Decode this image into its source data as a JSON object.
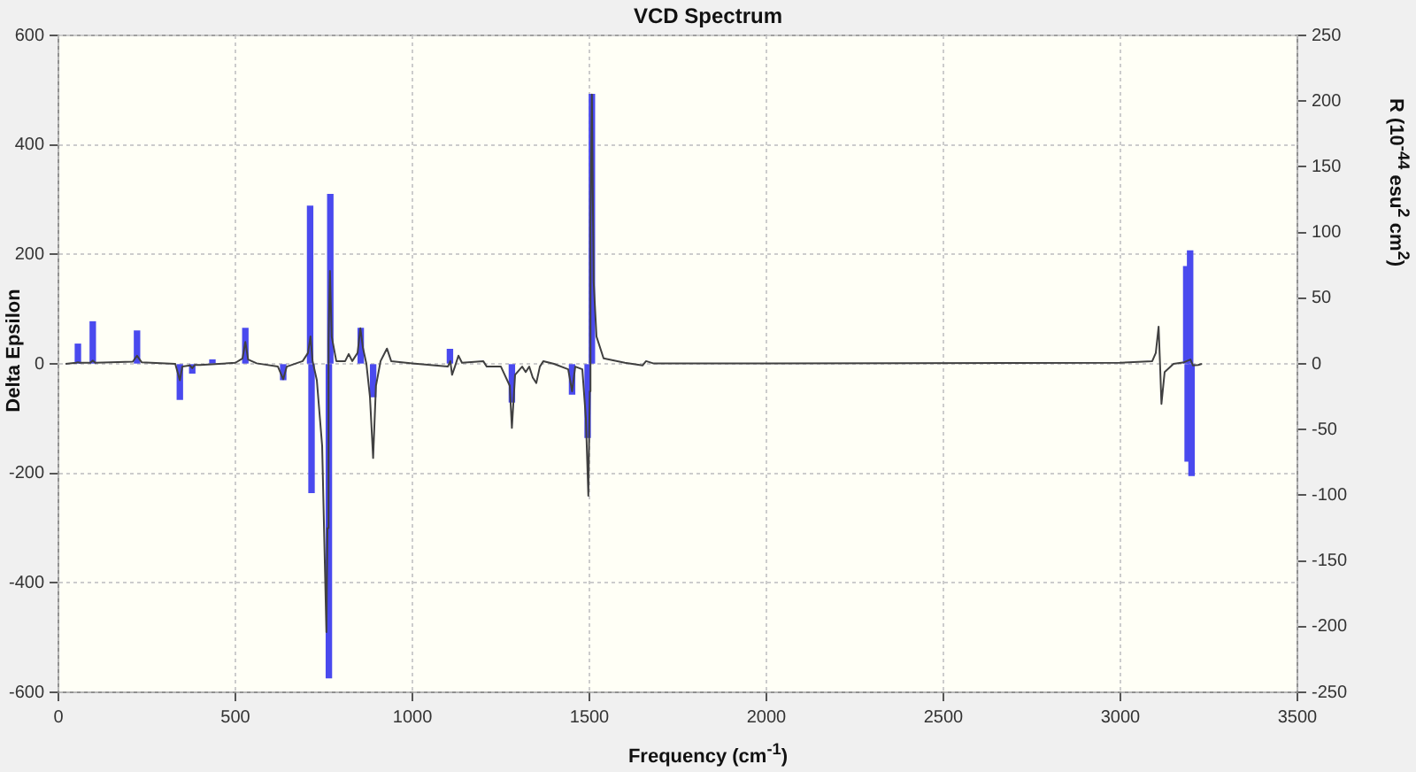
{
  "chart_data": {
    "type": "line",
    "title": "VCD Spectrum",
    "xlabel": "Frequency (cm$^{-1}$)",
    "ylabel": "Delta Epsilon",
    "y2label": "R (10$^{-44}$ esu$^{2}$ cm$^{2}$)",
    "xlim": [
      0,
      3500
    ],
    "xticks": [
      0,
      500,
      1000,
      1500,
      2000,
      2500,
      3000,
      3500
    ],
    "ylim": [
      -600,
      600
    ],
    "yticks": [
      -600,
      -400,
      -200,
      0,
      200,
      400,
      600
    ],
    "y2lim": [
      -250,
      250
    ],
    "y2ticks": [
      -250,
      -200,
      -150,
      -100,
      -50,
      0,
      50,
      100,
      150,
      200,
      250
    ],
    "grid": true,
    "legend": false,
    "marker": "none",
    "line_style": "solid",
    "series": [
      {
        "color": "#404040",
        "x": [
          20,
          50,
          55,
          60,
          90,
          97,
          104,
          210,
          222,
          235,
          330,
          343,
          350,
          372,
          378,
          385,
          400,
          500,
          520,
          528,
          536,
          560,
          620,
          635,
          645,
          690,
          705,
          712,
          718,
          730,
          745,
          757,
          760,
          763,
          767,
          772,
          785,
          810,
          820,
          830,
          845,
          853,
          860,
          870,
          880,
          889,
          897,
          910,
          928,
          940,
          1000,
          1100,
          1107,
          1112,
          1120,
          1130,
          1140,
          1200,
          1210,
          1250,
          1275,
          1281,
          1290,
          1310,
          1320,
          1330,
          1340,
          1350,
          1360,
          1370,
          1400,
          1440,
          1451,
          1460,
          1480,
          1490,
          1497,
          1501,
          1503,
          1507,
          1512,
          1520,
          1540,
          1600,
          1650,
          1660,
          1680,
          2000,
          3000,
          3090,
          3100,
          3108,
          3112,
          3116,
          3125,
          3150,
          3180,
          3198,
          3205,
          3220,
          3230
        ],
        "values": [
          0,
          2,
          3,
          2,
          2,
          6,
          2,
          4,
          15,
          3,
          0,
          -30,
          -5,
          -3,
          -8,
          -2,
          -2,
          2,
          10,
          40,
          8,
          1,
          -5,
          -28,
          -5,
          5,
          20,
          50,
          5,
          -30,
          -150,
          -490,
          -300,
          40,
          170,
          50,
          5,
          5,
          18,
          5,
          20,
          65,
          30,
          0,
          -60,
          -172,
          -40,
          5,
          28,
          5,
          1,
          -5,
          5,
          -20,
          -5,
          15,
          2,
          5,
          -5,
          -5,
          -40,
          -117,
          -20,
          -5,
          -15,
          -5,
          -25,
          -35,
          -5,
          5,
          0,
          -10,
          -50,
          -5,
          -10,
          -100,
          -241,
          -50,
          250,
          492,
          150,
          50,
          10,
          2,
          -3,
          5,
          1,
          1,
          2,
          5,
          20,
          68,
          0,
          -73,
          -15,
          0,
          3,
          8,
          -3,
          -2,
          0
        ]
      },
      {
        "type": "bar",
        "axis": "y2",
        "color": "#4a4aee",
        "x": [
          55,
          97,
          222,
          343,
          378,
          435,
          528,
          635,
          711,
          715,
          764,
          768,
          854,
          889,
          1106,
          1281,
          1451,
          1495,
          1507,
          3186,
          3190,
          3197,
          3201
        ],
        "values": [
          15,
          32,
          25,
          -27,
          -7,
          3,
          27,
          -12,
          120,
          -98,
          -239,
          129,
          27,
          -25,
          11,
          -29,
          -23,
          -56,
          205,
          74,
          -74,
          86,
          -85
        ]
      }
    ]
  }
}
